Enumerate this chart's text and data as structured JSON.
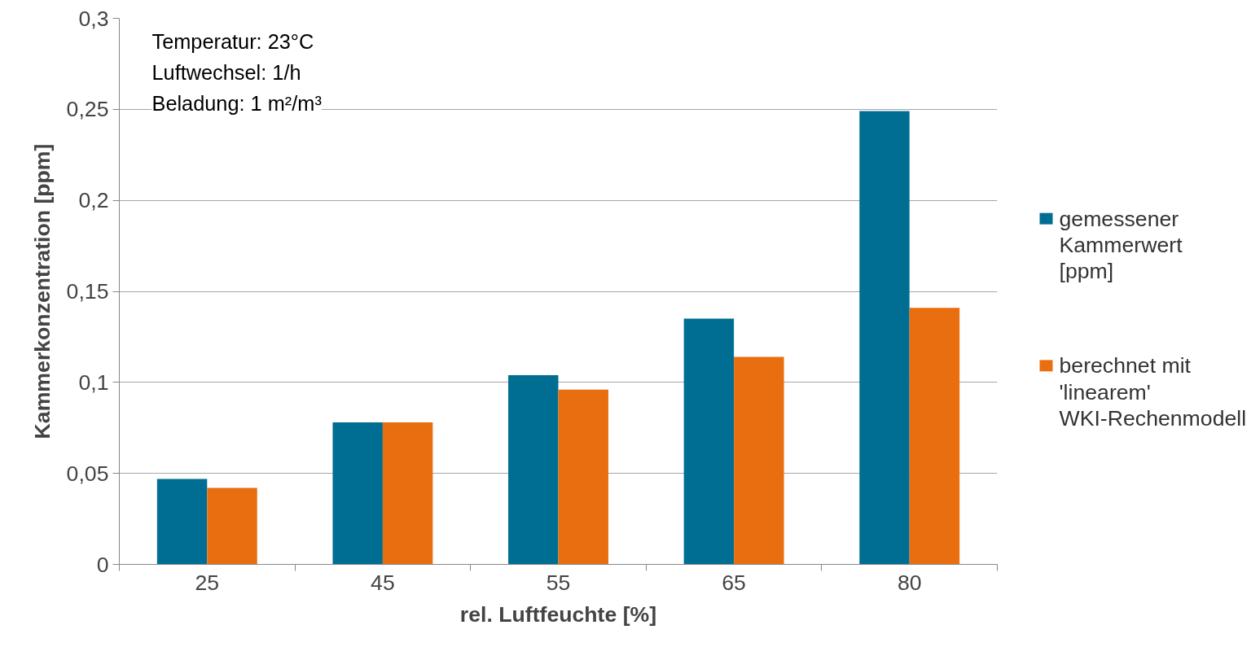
{
  "chart_data": {
    "type": "bar",
    "xlabel": "rel. Luftfeuchte [%]",
    "ylabel": "Kammerkonzentration [ppm]",
    "categories": [
      "25",
      "45",
      "55",
      "65",
      "80"
    ],
    "series": [
      {
        "name": "gemessener Kammerwert [ppm]",
        "color": "#006e93",
        "values": [
          0.047,
          0.078,
          0.104,
          0.135,
          0.249
        ]
      },
      {
        "name": "berechnet mit 'linearem' WKI-Rechenmodell",
        "color": "#e86e0f",
        "values": [
          0.042,
          0.078,
          0.096,
          0.114,
          0.141
        ]
      }
    ],
    "ylim": [
      0,
      0.3
    ],
    "yticks": [
      0,
      {
        "value": 0.05,
        "label": "0,05"
      },
      {
        "value": 0.1,
        "label": "0,1"
      },
      {
        "value": 0.15,
        "label": "0,15"
      },
      {
        "value": 0.2,
        "label": "0,2"
      },
      {
        "value": 0.25,
        "label": "0,25"
      },
      {
        "value": 0.3,
        "label": "0,3"
      }
    ],
    "grid": "y",
    "legend": "right",
    "annotations": [
      "Temperatur: 23°C",
      "Luftwechsel: 1/h",
      "Beladung: 1 m²/m³"
    ]
  }
}
